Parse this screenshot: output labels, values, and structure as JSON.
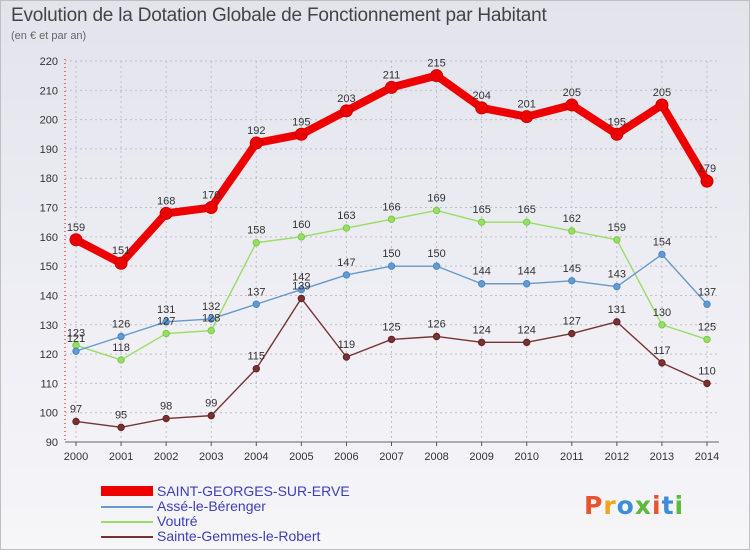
{
  "header": {
    "title": "Evolution de la Dotation Globale de Fonctionnement par Habitant",
    "subtitle": "(en € et par an)"
  },
  "logo": {
    "text": "Proxiti",
    "colors": [
      "#e8542f",
      "#f0a31c",
      "#3c8fd6",
      "#5dba3a",
      "#e8542f",
      "#3c8fd6",
      "#5dba3a"
    ]
  },
  "chart_data": {
    "type": "line",
    "title": "Evolution de la Dotation Globale de Fonctionnement par Habitant",
    "subtitle": "(en € et par an)",
    "xlabel": "",
    "ylabel": "",
    "x": [
      "2000",
      "2001",
      "2002",
      "2003",
      "2004",
      "2005",
      "2006",
      "2007",
      "2008",
      "2009",
      "2010",
      "2011",
      "2012",
      "2013",
      "2014"
    ],
    "ylim": [
      90,
      220
    ],
    "yticks": [
      90,
      100,
      110,
      120,
      130,
      140,
      150,
      160,
      170,
      180,
      190,
      200,
      210,
      220
    ],
    "grid": true,
    "legend_position": "bottom-left",
    "series": [
      {
        "name": "SAINT-GEORGES-SUR-ERVE",
        "color": "#ee0000",
        "marker": "#cc0000",
        "emphasis": true,
        "values": [
          159,
          151,
          168,
          170,
          192,
          195,
          203,
          211,
          215,
          204,
          201,
          205,
          195,
          205,
          179
        ]
      },
      {
        "name": "Assé-le-Bérenger",
        "color": "#6699cc",
        "marker": "#4488cc",
        "values": [
          121,
          126,
          131,
          132,
          137,
          142,
          147,
          150,
          150,
          144,
          144,
          145,
          143,
          154,
          137
        ]
      },
      {
        "name": "Voutré",
        "color": "#99dd66",
        "marker": "#77cc44",
        "values": [
          123,
          118,
          127,
          128,
          158,
          160,
          163,
          166,
          169,
          165,
          165,
          162,
          159,
          130,
          125
        ]
      },
      {
        "name": "Sainte-Gemmes-le-Robert",
        "color": "#773333",
        "marker": "#662222",
        "values": [
          97,
          95,
          98,
          99,
          115,
          139,
          119,
          125,
          126,
          124,
          124,
          127,
          131,
          117,
          110
        ]
      }
    ]
  }
}
